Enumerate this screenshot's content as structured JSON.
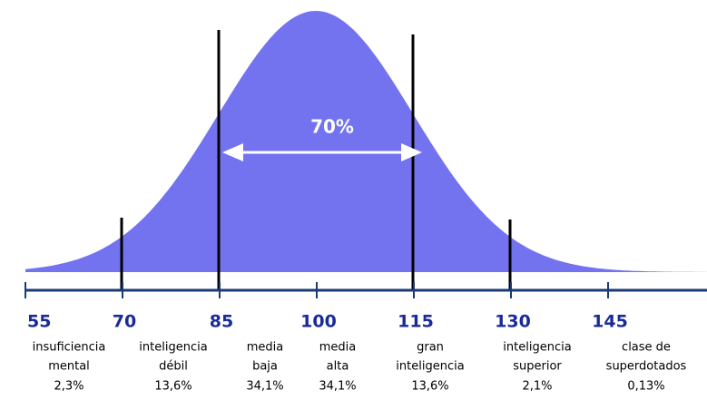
{
  "annotation": "70%",
  "axis_labels": [
    "55",
    "70",
    "85",
    "100",
    "115",
    "130",
    "145"
  ],
  "groups": [
    {
      "lines": [
        "insuficiencia",
        "mental"
      ],
      "percent": "2,3%"
    },
    {
      "lines": [
        "inteligencia",
        "débil"
      ],
      "percent": "13,6%"
    },
    {
      "lines": [
        "media",
        "baja"
      ],
      "percent": "34,1%"
    },
    {
      "lines": [
        "media",
        "alta"
      ],
      "percent": "34,1%"
    },
    {
      "lines": [
        "gran",
        "inteligencia"
      ],
      "percent": "13,6%"
    },
    {
      "lines": [
        "inteligencia",
        "superior"
      ],
      "percent": "2,1%"
    },
    {
      "lines": [
        "clase de",
        "superdotados"
      ],
      "percent": "0,13%"
    }
  ]
}
